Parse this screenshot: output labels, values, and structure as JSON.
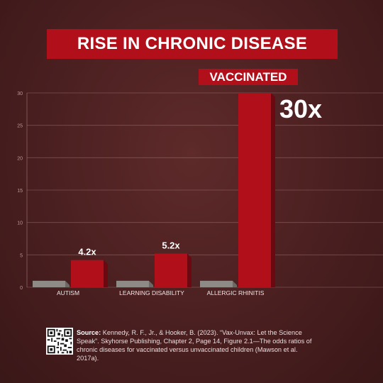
{
  "chart_data": {
    "type": "bar",
    "title": "RISE IN CHRONIC DISEASE",
    "legend_label": "VACCINATED",
    "categories": [
      "AUTISM",
      "LEARNING DISABILITY",
      "ALLERGIC RHINITIS"
    ],
    "series": [
      {
        "values": [
          1,
          1,
          1
        ],
        "color": "#8e8a86"
      },
      {
        "name": "VACCINATED",
        "values": [
          4.2,
          5.2,
          30
        ],
        "color": "#b10f1a"
      }
    ],
    "data_labels": [
      "4.2x",
      "5.2x",
      "30x"
    ],
    "yticks": [
      0,
      5,
      10,
      15,
      20,
      25,
      30
    ],
    "ylim": [
      0,
      30
    ],
    "grid": true
  },
  "source": {
    "label": "Source:",
    "text": "Kennedy, R. F., Jr., & Hooker, B. (2023). “Vax-Unvax: Let the Science Speak”. Skyhorse Publishing, Chapter 2, Page 14, Figure 2.1—The odds ratios of chronic diseases for vaccinated versus unvaccinated children (Mawson et al. 2017a)."
  },
  "colors": {
    "accent": "#b10f1a",
    "background": "#4a1f20"
  }
}
